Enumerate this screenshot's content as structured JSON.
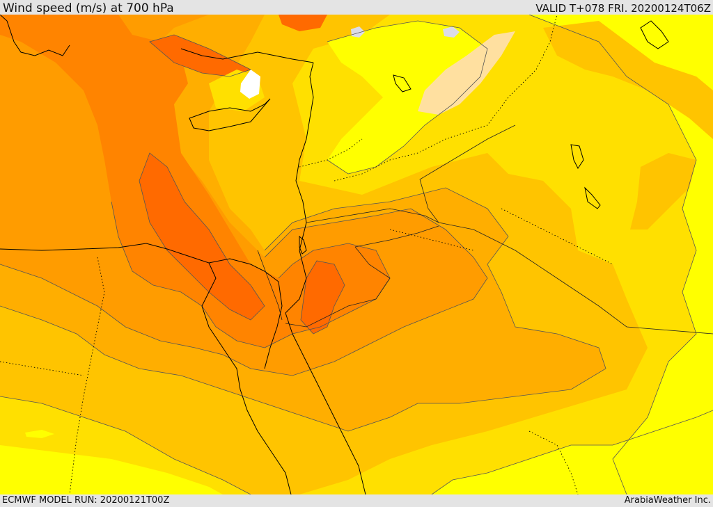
{
  "header": {
    "title": "Wind speed (m/s) at 700 hPa",
    "valid": "VALID T+078 FRI. 20200124T06Z"
  },
  "footer": {
    "model_run": "ECMWF MODEL RUN: 20200121T00Z",
    "credit": "ArabiaWeather Inc."
  },
  "map": {
    "field": "wind speed",
    "level": "700 hPa",
    "palette": {
      "white": "#ffffff",
      "pale_yellow": "#ffff00",
      "yellow": "#ffe000",
      "gold": "#ffc400",
      "amber": "#ffae00",
      "light_orange": "#ff9c00",
      "orange": "#ff8400",
      "dark_orange": "#ff6a00",
      "wheat": "#ffe0a0",
      "lavender": "#dcdce8",
      "contour": "#555555",
      "coast": "#000000"
    }
  }
}
